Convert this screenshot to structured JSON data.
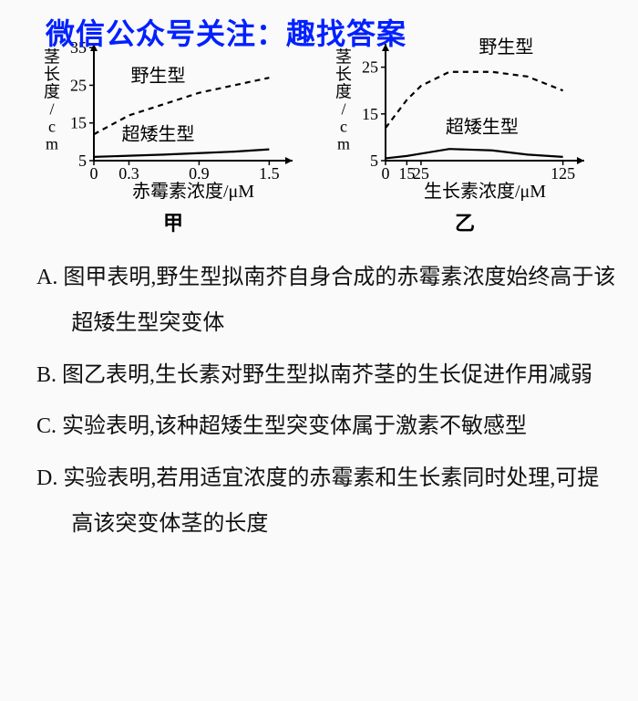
{
  "watermark": "微信公众号关注：趣找答案",
  "chart_jia": {
    "type": "line",
    "ylabel": "茎长度/cm",
    "xlabel": "赤霉素浓度/μM",
    "caption": "甲",
    "xlim": [
      0,
      1.7
    ],
    "ylim": [
      5,
      36
    ],
    "xticks": [
      0,
      0.3,
      0.9,
      1.5
    ],
    "yticks": [
      5,
      15,
      25,
      35
    ],
    "series": [
      {
        "name": "野生型",
        "label": "野生型",
        "dash": true,
        "points": [
          [
            0,
            12
          ],
          [
            0.3,
            17
          ],
          [
            0.6,
            20
          ],
          [
            0.9,
            23
          ],
          [
            1.2,
            25
          ],
          [
            1.5,
            27
          ]
        ],
        "color": "#000000",
        "label_pos": [
          0.55,
          26
        ]
      },
      {
        "name": "超矮生型",
        "label": "超矮生型",
        "dash": false,
        "points": [
          [
            0,
            6
          ],
          [
            0.3,
            6.3
          ],
          [
            0.6,
            6.6
          ],
          [
            0.9,
            7
          ],
          [
            1.2,
            7.4
          ],
          [
            1.5,
            8
          ]
        ],
        "color": "#000000",
        "label_pos": [
          0.55,
          10.5
        ]
      }
    ],
    "background_color": "#fafafa",
    "axis_color": "#000000",
    "label_fontsize": 20,
    "tick_fontsize": 18,
    "line_width": 2.2
  },
  "chart_yi": {
    "type": "line",
    "ylabel": "茎长度/cm",
    "xlabel": "生长素浓度/μM",
    "caption": "乙",
    "xlim": [
      0,
      140
    ],
    "ylim": [
      5,
      30
    ],
    "xticks": [
      0,
      15,
      25,
      125
    ],
    "yticks": [
      5,
      15,
      25
    ],
    "series": [
      {
        "name": "野生型",
        "label": "野生型",
        "dash": true,
        "points": [
          [
            0,
            12
          ],
          [
            15,
            18
          ],
          [
            25,
            21
          ],
          [
            45,
            24
          ],
          [
            75,
            24
          ],
          [
            100,
            23
          ],
          [
            125,
            20
          ]
        ],
        "color": "#000000",
        "label_pos": [
          85,
          28
        ]
      },
      {
        "name": "超矮生型",
        "label": "超矮生型",
        "dash": false,
        "points": [
          [
            0,
            5.5
          ],
          [
            15,
            6
          ],
          [
            25,
            6.5
          ],
          [
            45,
            7.5
          ],
          [
            75,
            7.2
          ],
          [
            100,
            6.3
          ],
          [
            125,
            5.8
          ]
        ],
        "color": "#000000",
        "label_pos": [
          68,
          11
        ]
      }
    ],
    "background_color": "#fafafa",
    "axis_color": "#000000",
    "label_fontsize": 20,
    "tick_fontsize": 18,
    "line_width": 2.2
  },
  "options": {
    "A": "A. 图甲表明,野生型拟南芥自身合成的赤霉素浓度始终高于该超矮生型突变体",
    "B": "B. 图乙表明,生长素对野生型拟南芥茎的生长促进作用减弱",
    "C": "C. 实验表明,该种超矮生型突变体属于激素不敏感型",
    "D": "D. 实验表明,若用适宜浓度的赤霉素和生长素同时处理,可提高该突变体茎的长度"
  }
}
